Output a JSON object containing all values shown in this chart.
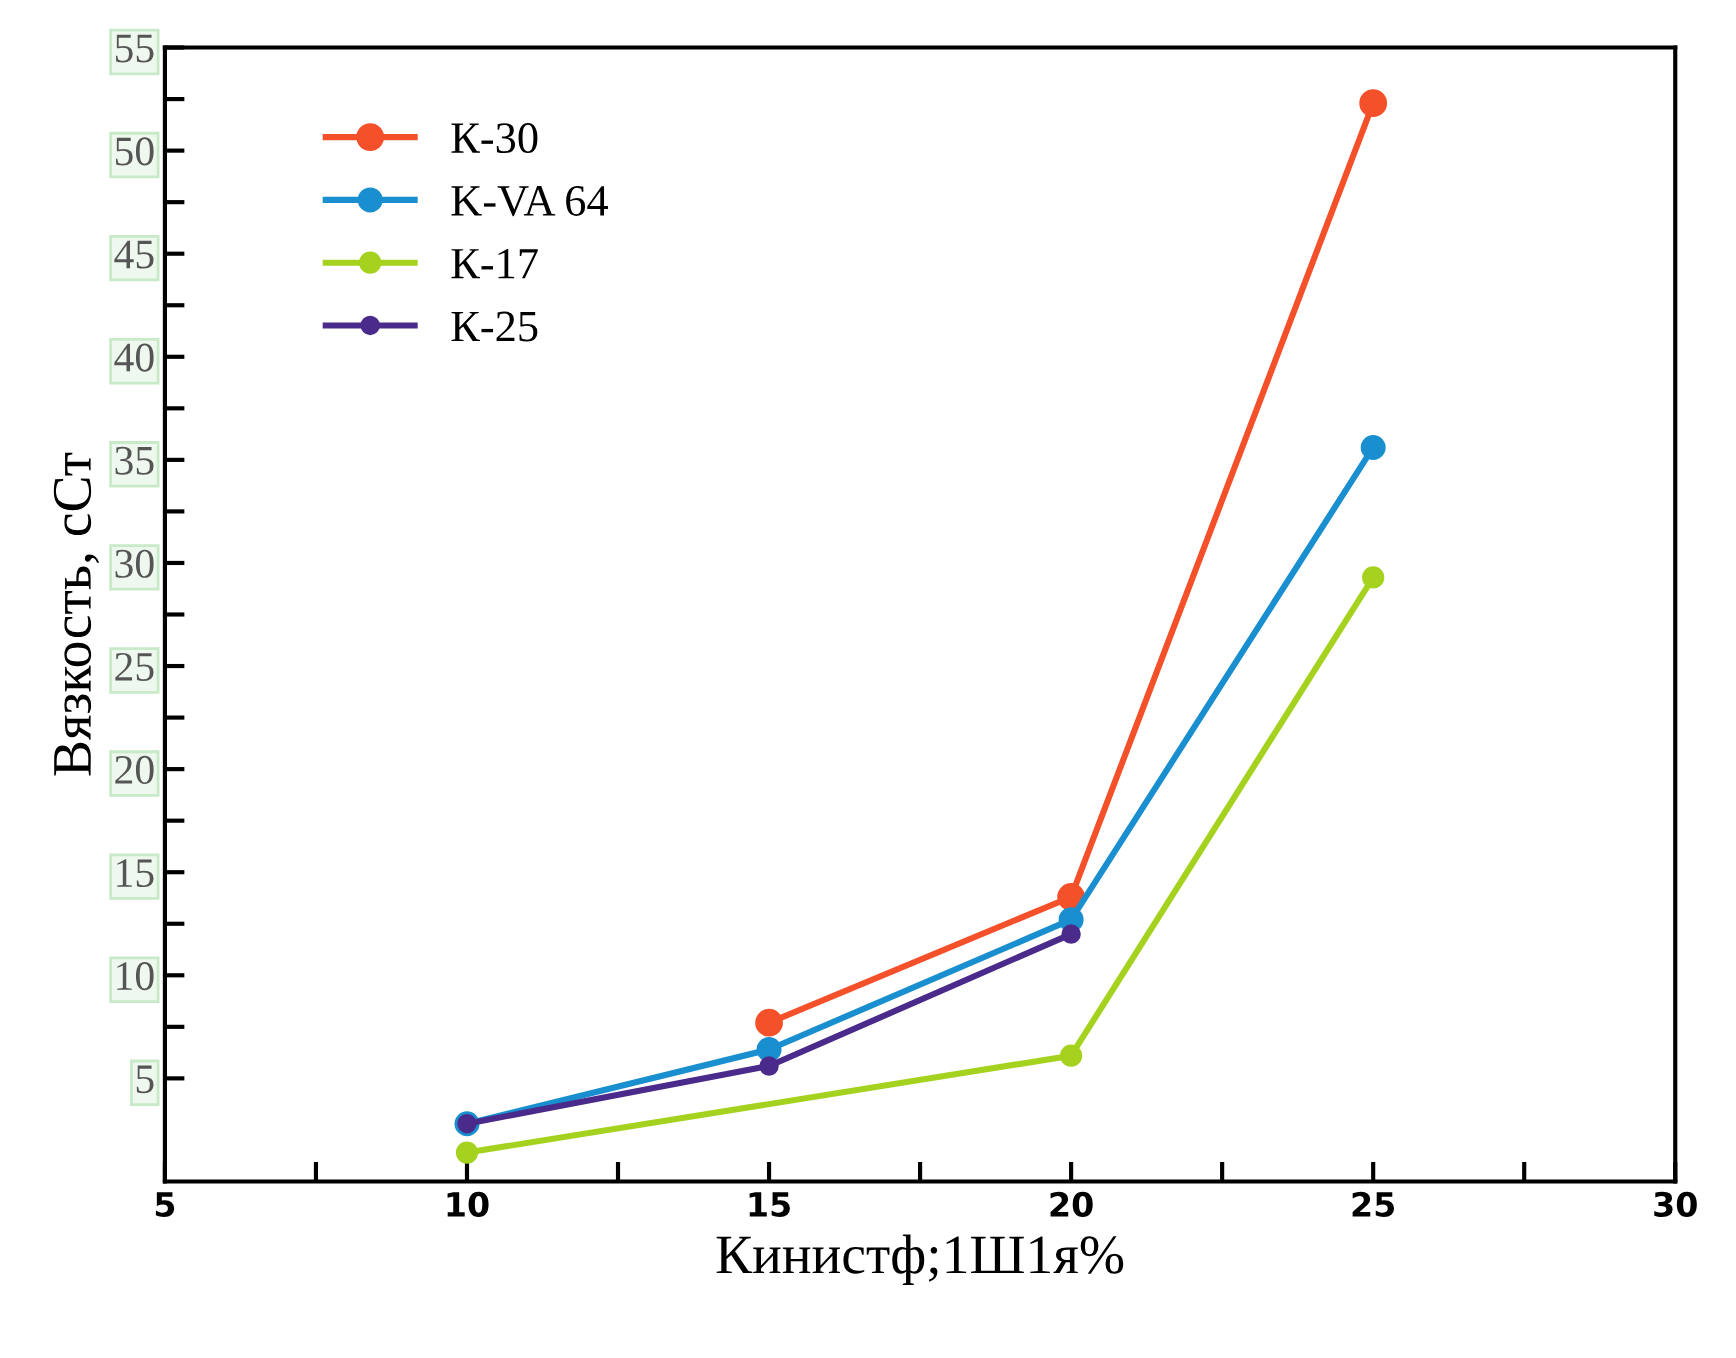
{
  "chart_data": {
    "type": "line",
    "xlabel": "Кинистф;1Ш1я%",
    "ylabel": "Вязкость, сСт",
    "series": [
      {
        "name": "К-30",
        "color": "#f4502a",
        "x": [
          15,
          20,
          25
        ],
        "values": [
          7.7,
          13.8,
          52.3
        ]
      },
      {
        "name": "K-VA 64",
        "color": "#1a8fd0",
        "x": [
          10,
          15,
          20,
          25
        ],
        "values": [
          2.8,
          6.4,
          12.7,
          35.6
        ]
      },
      {
        "name": "К-17",
        "color": "#a5d21e",
        "x": [
          10,
          20,
          25
        ],
        "values": [
          1.4,
          6.1,
          29.3
        ]
      },
      {
        "name": "К-25",
        "color": "#4a2a8a",
        "x": [
          10,
          15,
          20
        ],
        "values": [
          2.8,
          5.6,
          12.0
        ]
      }
    ],
    "xlim": [
      5,
      30
    ],
    "ylim": [
      0,
      55
    ],
    "xticks": [
      5,
      {
        "value": 7.5,
        "label": null
      },
      10,
      {
        "value": 12.5,
        "label": null
      },
      15,
      {
        "value": 17.5,
        "label": null
      },
      20,
      {
        "value": 22.5,
        "label": null
      },
      25,
      {
        "value": 27.5,
        "label": null
      },
      30
    ],
    "yticks": [
      5,
      {
        "value": 7.5,
        "label": null
      },
      10,
      {
        "value": 12.5,
        "label": null
      },
      15,
      {
        "value": 17.5,
        "label": null
      },
      20,
      {
        "value": 22.5,
        "label": null
      },
      25,
      {
        "value": 27.5,
        "label": null
      },
      30,
      {
        "value": 32.5,
        "label": null
      },
      35,
      {
        "value": 37.5,
        "label": null
      },
      40,
      {
        "value": 42.5,
        "label": null
      },
      45,
      {
        "value": 47.5,
        "label": null
      },
      50,
      {
        "value": 52.5,
        "label": null
      },
      55
    ],
    "legend": "top left",
    "marker": "circle",
    "line_style": "solid",
    "grid": false
  }
}
